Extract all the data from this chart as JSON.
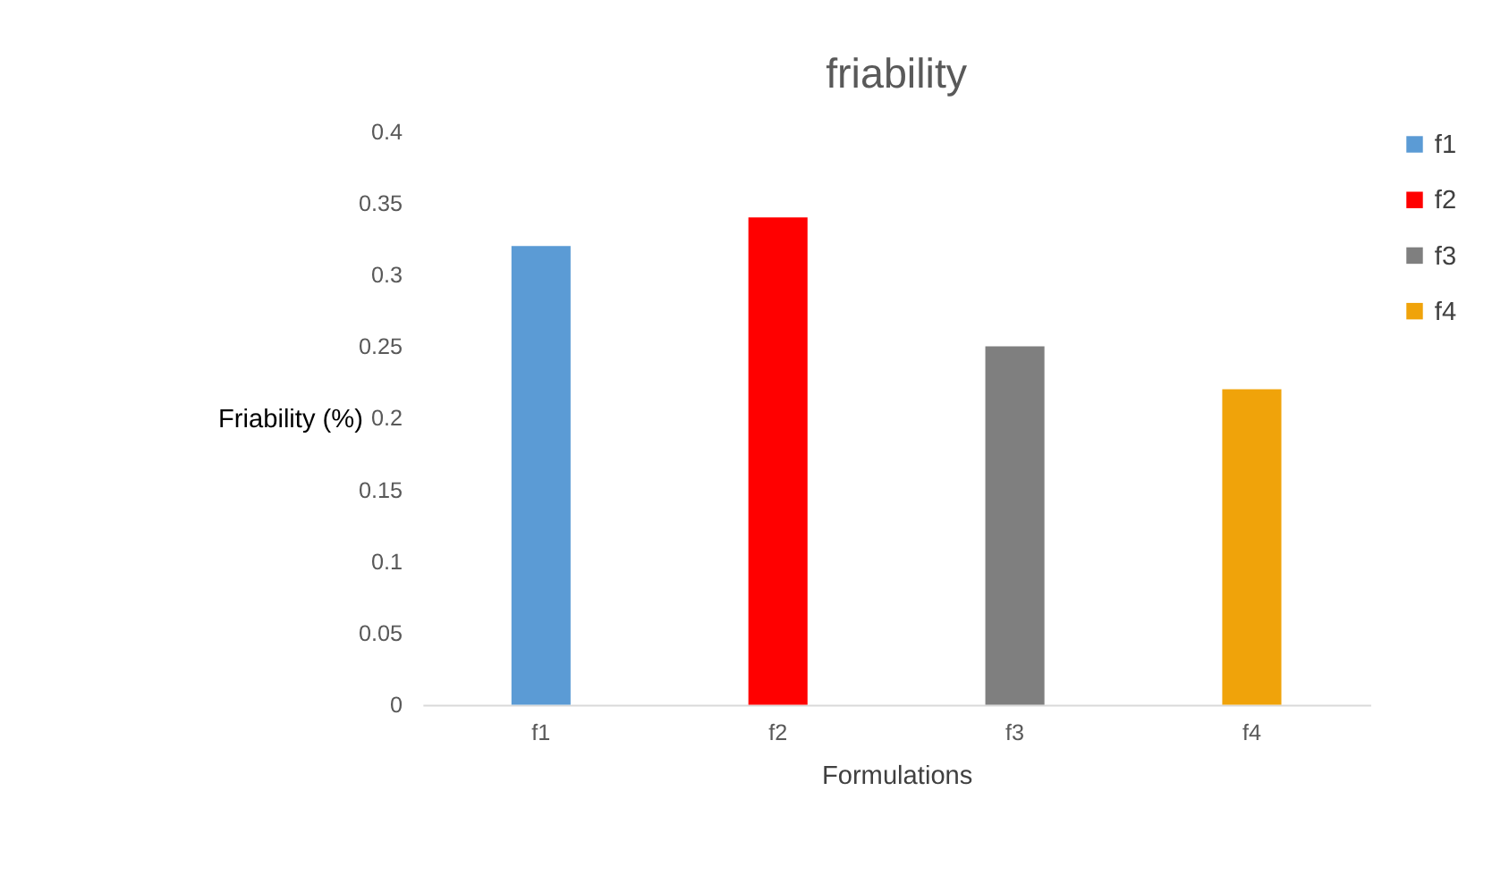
{
  "chart_data": {
    "type": "bar",
    "title": "friability",
    "xlabel": "Formulations",
    "ylabel": "Friability (%)",
    "categories": [
      "f1",
      "f2",
      "f3",
      "f4"
    ],
    "series": [
      {
        "name": "f1",
        "color": "#5b9bd5",
        "values": [
          0.32,
          null,
          null,
          null
        ]
      },
      {
        "name": "f2",
        "color": "#ff0000",
        "values": [
          null,
          0.34,
          null,
          null
        ]
      },
      {
        "name": "f3",
        "color": "#7f7f7f",
        "values": [
          null,
          null,
          0.25,
          null
        ]
      },
      {
        "name": "f4",
        "color": "#f0a30a",
        "values": [
          null,
          null,
          null,
          0.22
        ]
      }
    ],
    "ylim": [
      0,
      0.4
    ],
    "yticks": [
      0,
      0.05,
      0.1,
      0.15,
      0.2,
      0.25,
      0.3,
      0.35,
      0.4
    ],
    "grid": false,
    "legend": "right"
  }
}
